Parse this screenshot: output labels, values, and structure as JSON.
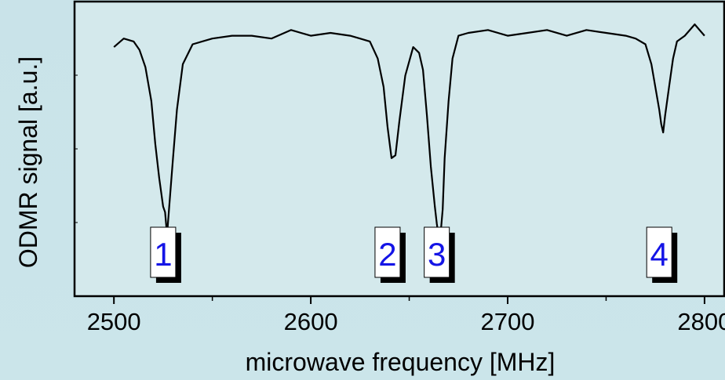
{
  "chart_data": {
    "type": "line",
    "xlabel": "microwave frequency [MHz]",
    "ylabel": "ODMR signal [a.u.]",
    "xlim": [
      2480,
      2810
    ],
    "ylim": [
      -0.035,
      1.0
    ],
    "xticks": [
      2500,
      2600,
      2700,
      2800
    ],
    "x_minor_ticks": [
      2550,
      2650,
      2750
    ],
    "yticks_labeled": false,
    "grid": false,
    "series": [
      {
        "x": [
          2500,
          2505,
          2510,
          2513,
          2516,
          2519,
          2521,
          2523,
          2524,
          2525,
          2526,
          2527,
          2528,
          2530,
          2532,
          2535,
          2540,
          2550,
          2560,
          2570,
          2580,
          2590,
          2600,
          2610,
          2620,
          2625,
          2630,
          2634,
          2637,
          2639,
          2641,
          2643,
          2645,
          2648,
          2652,
          2655,
          2657,
          2659,
          2661,
          2663,
          2664,
          2665,
          2666,
          2667,
          2668,
          2670,
          2672,
          2675,
          2680,
          2690,
          2700,
          2710,
          2720,
          2730,
          2740,
          2750,
          2760,
          2765,
          2770,
          2773,
          2775,
          2777,
          2778,
          2779,
          2780,
          2782,
          2784,
          2786,
          2790,
          2795,
          2800
        ],
        "y": [
          0.84,
          0.87,
          0.86,
          0.83,
          0.77,
          0.65,
          0.5,
          0.38,
          0.33,
          0.28,
          0.26,
          0.18,
          0.27,
          0.45,
          0.62,
          0.78,
          0.85,
          0.87,
          0.88,
          0.88,
          0.87,
          0.9,
          0.88,
          0.89,
          0.88,
          0.87,
          0.86,
          0.8,
          0.7,
          0.56,
          0.45,
          0.46,
          0.58,
          0.74,
          0.84,
          0.82,
          0.76,
          0.6,
          0.42,
          0.28,
          0.22,
          0.17,
          0.19,
          0.27,
          0.45,
          0.65,
          0.8,
          0.88,
          0.89,
          0.9,
          0.88,
          0.89,
          0.9,
          0.88,
          0.9,
          0.89,
          0.88,
          0.87,
          0.85,
          0.78,
          0.7,
          0.62,
          0.57,
          0.54,
          0.6,
          0.7,
          0.8,
          0.86,
          0.88,
          0.92,
          0.88
        ],
        "color": "#000000"
      }
    ],
    "annotations": [
      {
        "text": "1",
        "x": 2525
      },
      {
        "text": "2",
        "x": 2639
      },
      {
        "text": "3",
        "x": 2664
      },
      {
        "text": "4",
        "x": 2777
      }
    ]
  }
}
